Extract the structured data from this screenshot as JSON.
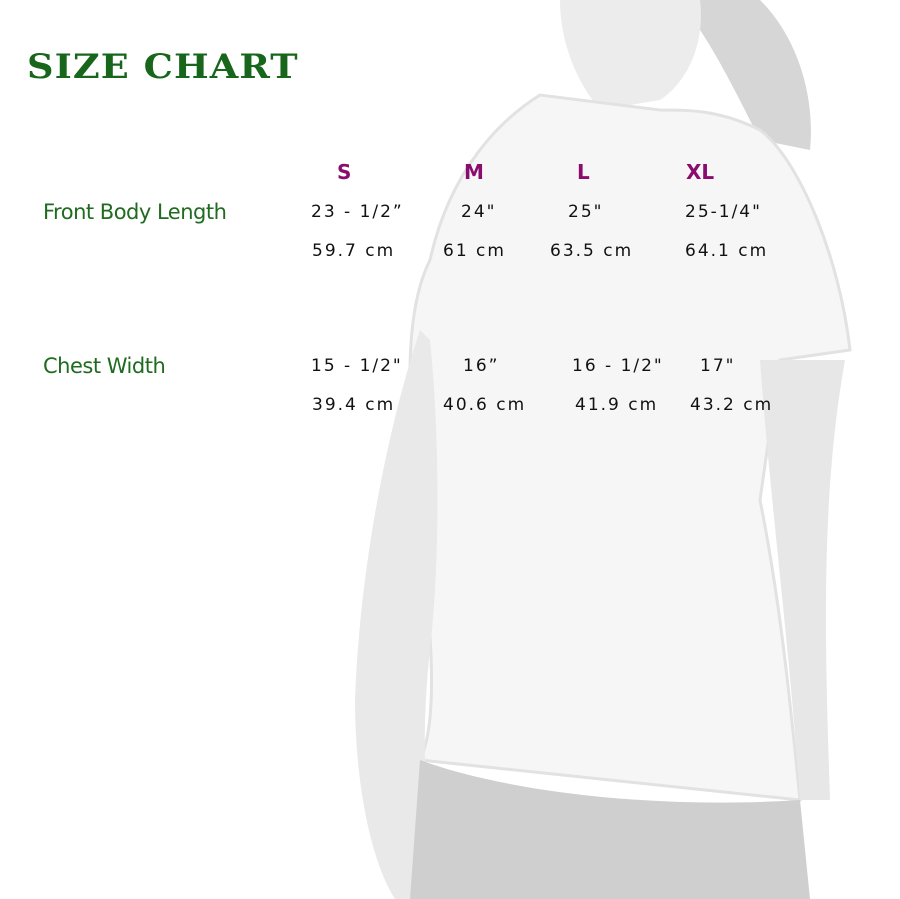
{
  "title": "SIZE CHART",
  "sizes": [
    "S",
    "M",
    "L",
    "XL"
  ],
  "rows": [
    {
      "label": "Front Body Length",
      "inches": [
        "23 - 1/2”",
        "24\"",
        "25\"",
        "25-1/4\""
      ],
      "cm": [
        "59.7 cm",
        "61 cm",
        "63.5 cm",
        "64.1 cm"
      ]
    },
    {
      "label": "Chest Width",
      "inches": [
        "15 - 1/2\"",
        "16”",
        "16 - 1/2\"",
        "17\""
      ],
      "cm": [
        "39.4 cm",
        "40.6 cm",
        "41.9 cm",
        "43.2 cm"
      ]
    }
  ],
  "colors": {
    "title": "#17661c",
    "label": "#1f6b1f",
    "size": "#8a0d6e",
    "value": "#111111"
  }
}
